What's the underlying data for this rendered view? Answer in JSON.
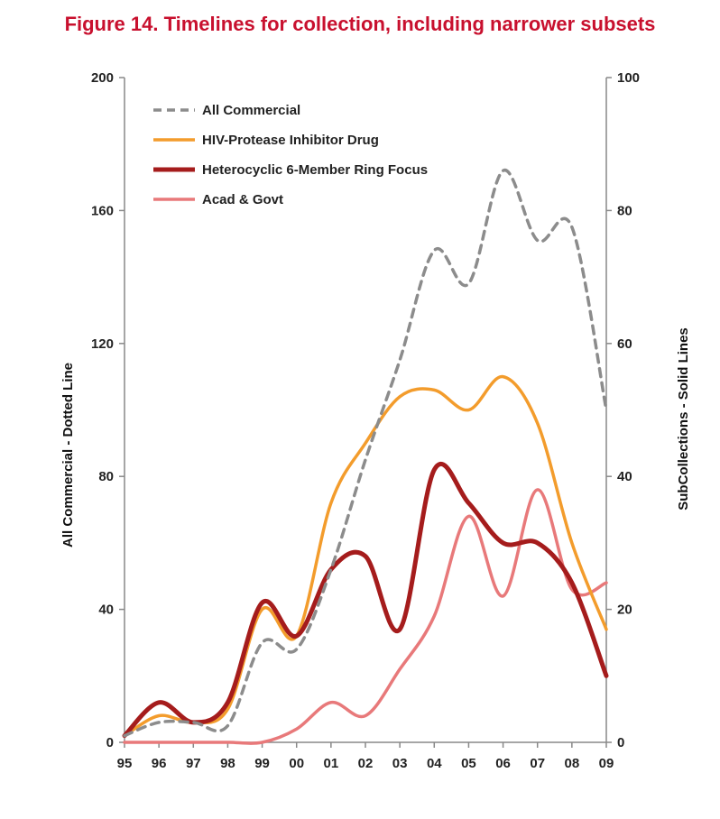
{
  "chart_data": {
    "type": "line",
    "title": "Figure 14. Timelines for collection, including narrower subsets",
    "categories": [
      "95",
      "96",
      "97",
      "98",
      "99",
      "00",
      "01",
      "02",
      "03",
      "04",
      "05",
      "06",
      "07",
      "08",
      "09"
    ],
    "y_left": {
      "label": "All Commercial - Dotted Line",
      "range": [
        0,
        200
      ],
      "ticks": [
        0,
        40,
        80,
        120,
        160,
        200
      ]
    },
    "y_right": {
      "label": "SubCollections - Solid Lines",
      "range": [
        0,
        100
      ],
      "ticks": [
        0,
        20,
        40,
        60,
        80,
        100
      ]
    },
    "legend_position": "top-left",
    "grid": false,
    "series": [
      {
        "name": "All Commercial",
        "axis": "left",
        "style": "dashed",
        "color": "#8c8c8c",
        "values": [
          2,
          6,
          6,
          5,
          30,
          28,
          52,
          85,
          115,
          148,
          138,
          172,
          151,
          155,
          100
        ]
      },
      {
        "name": "HIV-Protease Inhibitor Drug",
        "axis": "right",
        "style": "solid",
        "color": "#f39c2c",
        "values": [
          1,
          4,
          3,
          5,
          20,
          16,
          36,
          45,
          52,
          53,
          50,
          55,
          48,
          30,
          17
        ]
      },
      {
        "name": "Heterocyclic 6-Member Ring Focus",
        "axis": "right",
        "style": "solid",
        "color": "#a51c1c",
        "values": [
          1,
          6,
          3,
          6,
          21,
          16,
          26,
          28,
          17,
          41,
          36,
          30,
          30,
          24,
          10
        ]
      },
      {
        "name": "Acad & Govt",
        "axis": "right",
        "style": "solid",
        "color": "#e8797a",
        "values": [
          0,
          0,
          0,
          0,
          0,
          2,
          6,
          4,
          11,
          19,
          34,
          22,
          38,
          23,
          24
        ]
      }
    ]
  }
}
